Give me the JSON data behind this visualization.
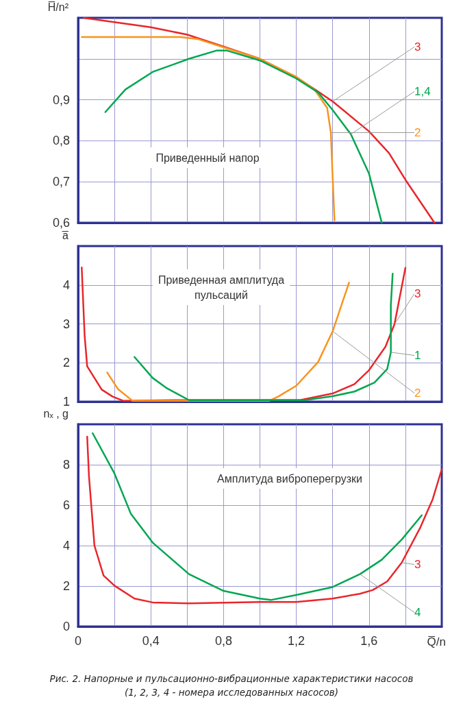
{
  "chart_data": [
    {
      "type": "line",
      "title": "Приведенный напор",
      "ylabel": "H̅/n²",
      "marker": "none",
      "line_style": "solid",
      "grid": true,
      "tick_labels": "y",
      "xlim": [
        0,
        2.0
      ],
      "ylim": [
        0.6,
        1.1
      ],
      "xticks": [
        {
          "value": 0.2,
          "label": null
        },
        {
          "value": 0.4,
          "label": null
        },
        {
          "value": 0.6,
          "label": null
        },
        {
          "value": 0.8,
          "label": null
        },
        {
          "value": 1.0,
          "label": null
        },
        {
          "value": 1.2,
          "label": null
        },
        {
          "value": 1.4,
          "label": null
        },
        {
          "value": 1.6,
          "label": null
        },
        {
          "value": 1.8,
          "label": null
        }
      ],
      "yticks": [
        {
          "value": 0.6,
          "label": "0,6"
        },
        {
          "value": 0.7,
          "label": "0,7"
        },
        {
          "value": 0.8,
          "label": "0,8"
        },
        {
          "value": 0.9,
          "label": "0,9"
        },
        {
          "value": 1.0,
          "label": null
        }
      ],
      "series": [
        {
          "name": "3",
          "color": "#e8262a",
          "x": [
            0.03,
            0.4,
            0.6,
            0.8,
            1.0,
            1.2,
            1.3,
            1.4,
            1.6,
            1.71,
            1.8,
            1.96
          ],
          "values": [
            1.1,
            1.077,
            1.059,
            1.03,
            1.0,
            0.955,
            0.926,
            0.896,
            0.823,
            0.77,
            0.705,
            0.6
          ]
        },
        {
          "name": "2",
          "color": "#f7941d",
          "x": [
            0.02,
            0.3,
            0.56,
            0.66,
            0.8,
            1.0,
            1.2,
            1.3,
            1.37,
            1.39,
            1.4,
            1.41
          ],
          "values": [
            1.053,
            1.053,
            1.053,
            1.048,
            1.028,
            1.0,
            0.956,
            0.925,
            0.88,
            0.82,
            0.71,
            0.606
          ]
        },
        {
          "name": "1,4",
          "color": "#00a650",
          "x": [
            0.15,
            0.26,
            0.41,
            0.61,
            0.76,
            0.82,
            1.0,
            1.2,
            1.32,
            1.4,
            1.5,
            1.6,
            1.67
          ],
          "values": [
            0.87,
            0.925,
            0.968,
            1.0,
            1.02,
            1.02,
            0.996,
            0.952,
            0.918,
            0.875,
            0.816,
            0.72,
            0.6
          ]
        }
      ]
    },
    {
      "type": "line",
      "title": "Приведенная амплитуда\nпульсаций",
      "ylabel": "a̅",
      "marker": "none",
      "line_style": "solid",
      "grid": true,
      "tick_labels": "y",
      "xlim": [
        0,
        2.0
      ],
      "ylim": [
        1,
        5
      ],
      "xticks": [
        {
          "value": 0.2,
          "label": null
        },
        {
          "value": 0.4,
          "label": null
        },
        {
          "value": 0.6,
          "label": null
        },
        {
          "value": 0.8,
          "label": null
        },
        {
          "value": 1.0,
          "label": null
        },
        {
          "value": 1.2,
          "label": null
        },
        {
          "value": 1.4,
          "label": null
        },
        {
          "value": 1.6,
          "label": null
        },
        {
          "value": 1.8,
          "label": null
        }
      ],
      "yticks": [
        1,
        2,
        3,
        4
      ],
      "series": [
        {
          "name": "3",
          "color": "#e8262a",
          "x": [
            0.02,
            0.036,
            0.05,
            0.13,
            0.19,
            0.25,
            0.56,
            1.22,
            1.4,
            1.52,
            1.6,
            1.69,
            1.74,
            1.8
          ],
          "values": [
            4.45,
            2.7,
            1.91,
            1.31,
            1.13,
            1.02,
            1.04,
            1.04,
            1.21,
            1.45,
            1.81,
            2.41,
            2.99,
            4.44
          ]
        },
        {
          "name": "2",
          "color": "#f7941d",
          "x": [
            0.16,
            0.22,
            0.3,
            1.05,
            1.1,
            1.2,
            1.32,
            1.4,
            1.49
          ],
          "values": [
            1.75,
            1.32,
            1.02,
            1.02,
            1.13,
            1.41,
            2.02,
            2.81,
            4.06
          ]
        },
        {
          "name": "1",
          "color": "#00a650",
          "x": [
            0.31,
            0.41,
            0.49,
            0.61,
            1.25,
            1.4,
            1.52,
            1.63,
            1.7,
            1.72,
            1.72,
            1.73
          ],
          "values": [
            2.15,
            1.61,
            1.34,
            1.04,
            1.04,
            1.14,
            1.26,
            1.49,
            1.84,
            2.27,
            3.49,
            4.29
          ]
        }
      ]
    },
    {
      "type": "line",
      "title": "Амплитуда виброперегрузки",
      "xlabel": "Q̅/n",
      "ylabel": "nₓ , g",
      "marker": "none",
      "line_style": "solid",
      "grid": true,
      "xlim": [
        0,
        2.0
      ],
      "ylim": [
        0,
        10
      ],
      "xticks": [
        0,
        {
          "value": 0.2,
          "label": null
        },
        {
          "value": 0.4,
          "label": "0,4"
        },
        {
          "value": 0.6,
          "label": null
        },
        {
          "value": 0.8,
          "label": "0,8"
        },
        {
          "value": 1.0,
          "label": null
        },
        {
          "value": 1.2,
          "label": "1,2"
        },
        {
          "value": 1.4,
          "label": null
        },
        {
          "value": 1.6,
          "label": "1,6"
        },
        {
          "value": 1.8,
          "label": null
        }
      ],
      "yticks": [
        0,
        2,
        4,
        6,
        8
      ],
      "annotations": [
        "Рис. 2. Напорные и пульсационно-вибрационные характеристики насосов\n(1, 2, 3, 4 - номера исследованных насосов)"
      ],
      "series": [
        {
          "name": "3",
          "color": "#e8262a",
          "x": [
            0.05,
            0.06,
            0.09,
            0.14,
            0.2,
            0.31,
            0.41,
            0.61,
            1.0,
            1.2,
            1.4,
            1.55,
            1.62,
            1.7,
            1.78,
            1.88,
            1.95,
            2.0
          ],
          "values": [
            9.39,
            7.42,
            4.0,
            2.52,
            2.02,
            1.38,
            1.19,
            1.14,
            1.21,
            1.21,
            1.38,
            1.62,
            1.8,
            2.23,
            3.16,
            4.86,
            6.29,
            7.78
          ]
        },
        {
          "name": "4",
          "color": "#00a650",
          "x": [
            0.08,
            0.2,
            0.29,
            0.41,
            0.61,
            0.8,
            1.0,
            1.06,
            1.2,
            1.4,
            1.55,
            1.67,
            1.78,
            1.89
          ],
          "values": [
            9.56,
            7.57,
            5.58,
            4.15,
            2.59,
            1.76,
            1.38,
            1.31,
            1.56,
            1.95,
            2.59,
            3.3,
            4.3,
            5.5
          ]
        }
      ]
    }
  ]
}
